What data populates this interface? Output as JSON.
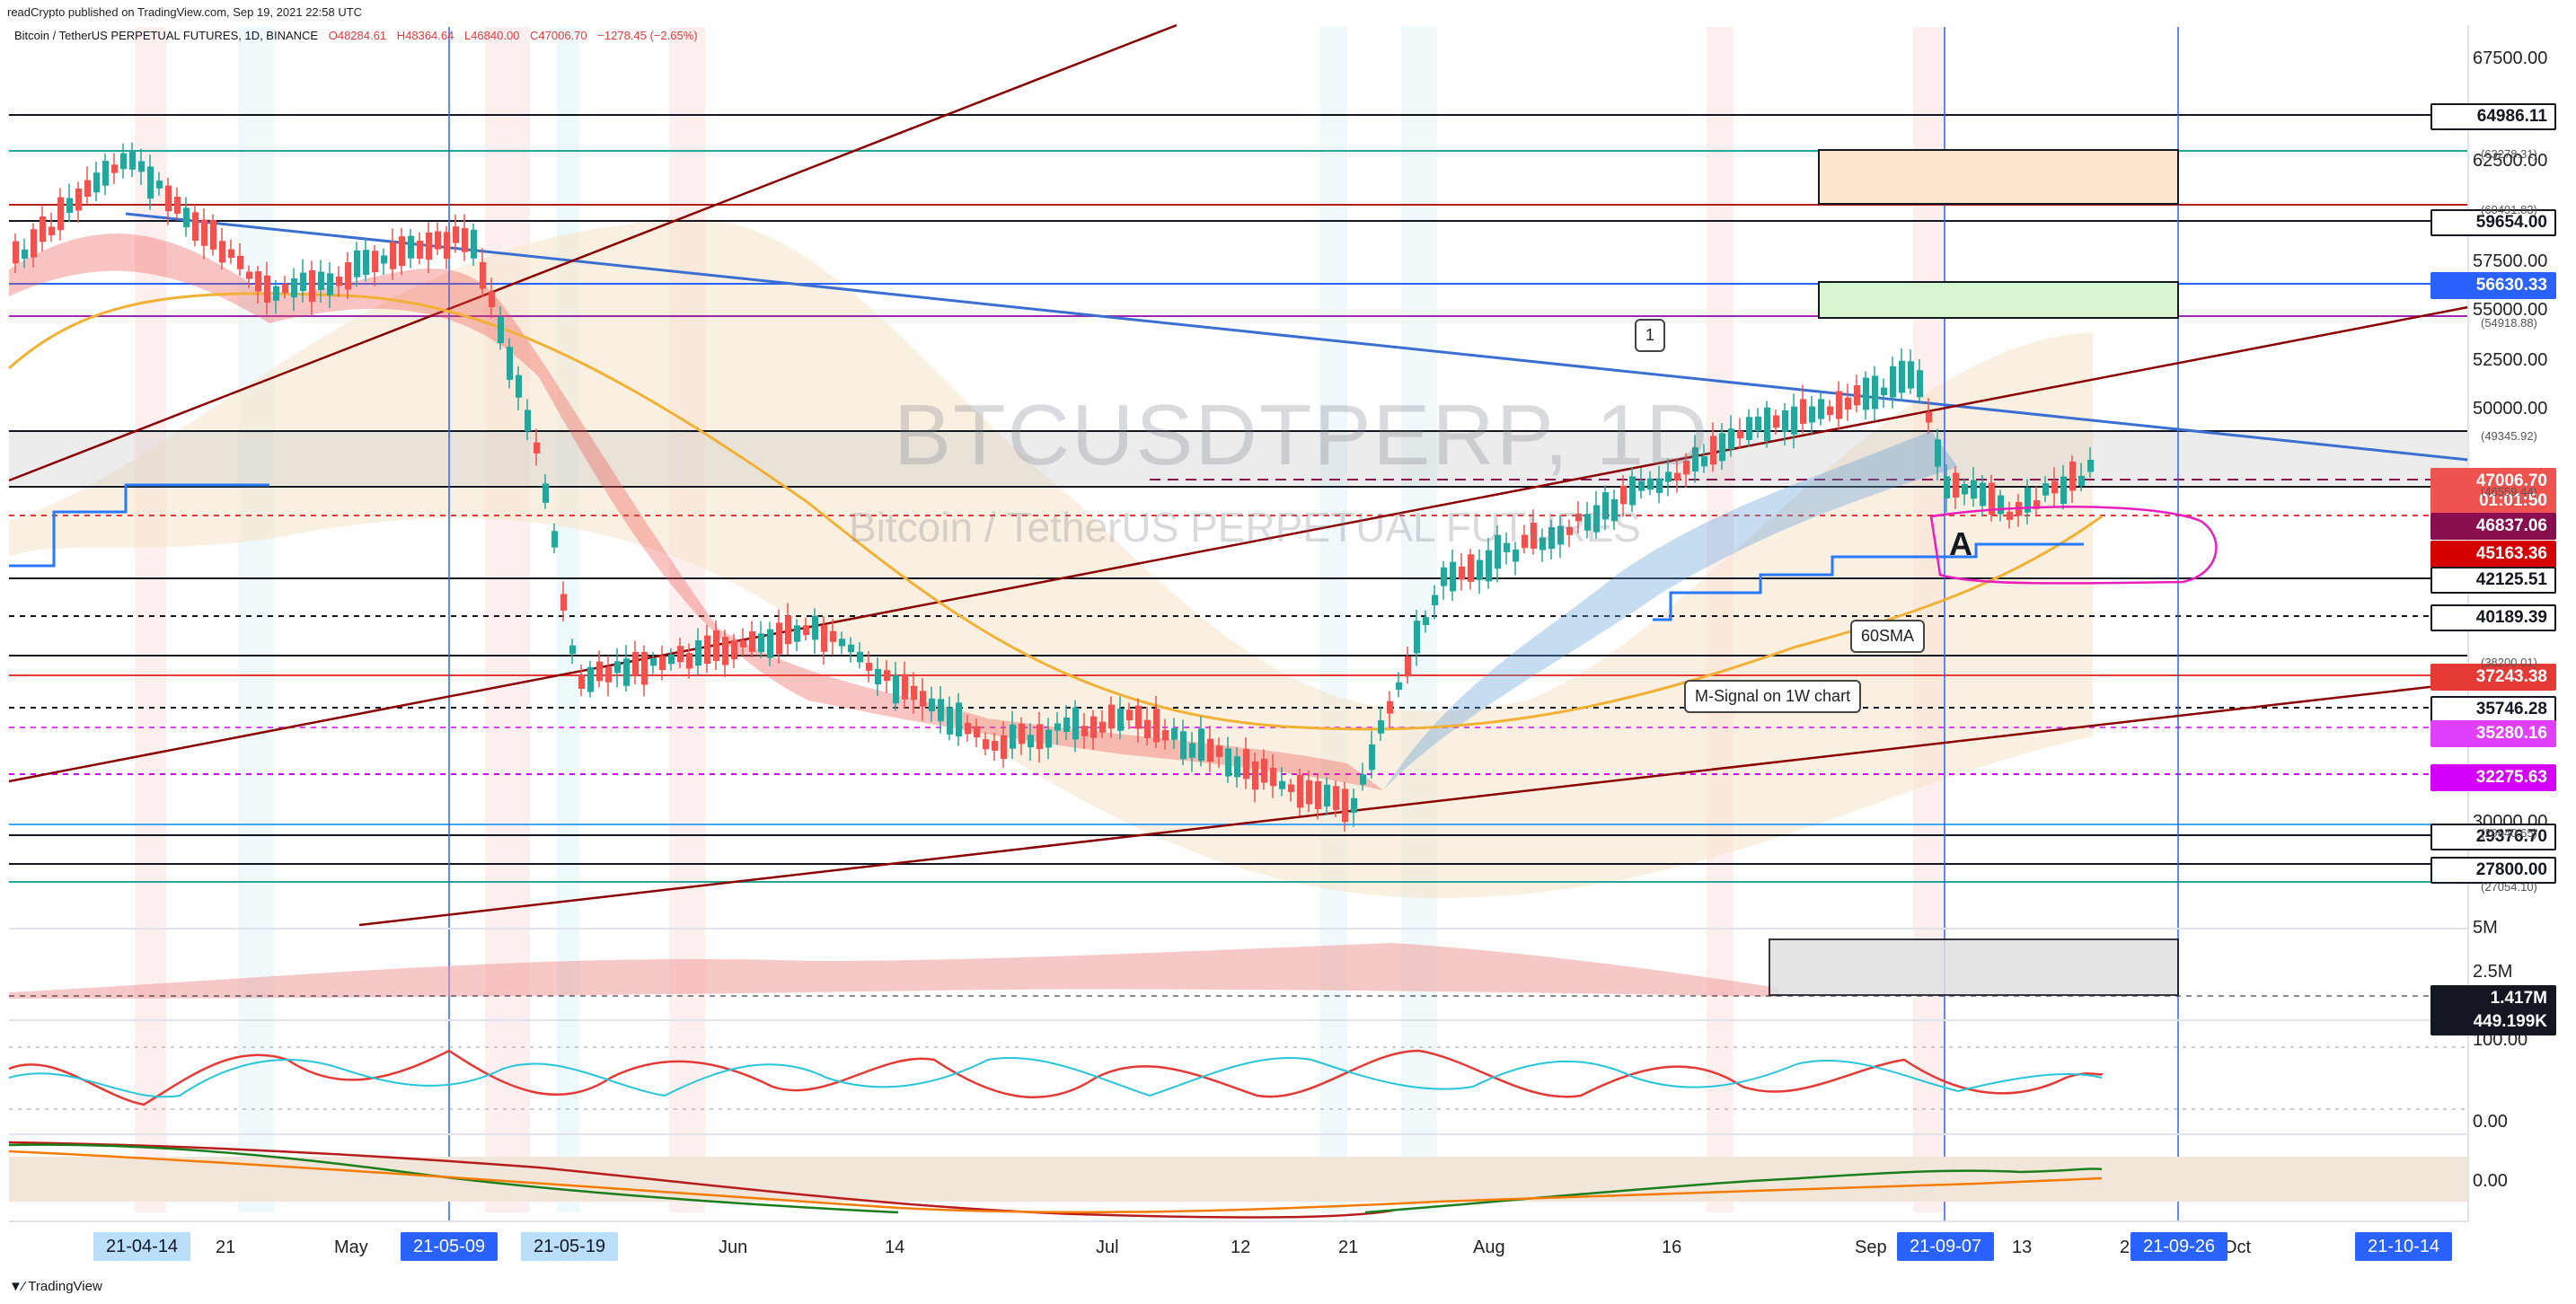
{
  "header": {
    "published": "readCrypto published on TradingView.com, Sep 19, 2021 22:58 UTC",
    "symbol": "Bitcoin / TetherUS PERPETUAL FUTURES, 1D, BINANCE",
    "open": "O48284.61",
    "high": "H48364.64",
    "low": "L46840.00",
    "close": "C47006.70",
    "change": "−1278.45 (−2.65%)"
  },
  "watermark": {
    "ticker": "BTCUSDTPERP, 1D",
    "name": "Bitcoin / TetherUS PERPETUAL FUTURES"
  },
  "price_axis": {
    "ticks": [
      "67500.00",
      "62500.00",
      "57500.00",
      "55000.00",
      "52500.00",
      "50000.00",
      "30000.00",
      "5M",
      "2.5M",
      "100.00",
      "0.00",
      "0.00"
    ],
    "badges": [
      {
        "text": "64986.11",
        "bg": "#ffffff",
        "fg": "#131722",
        "border": "#131722"
      },
      {
        "text": "59654.00",
        "bg": "#ffffff",
        "fg": "#131722",
        "border": "#131722"
      },
      {
        "text": "56630.33",
        "bg": "#2962ff",
        "fg": "#ffffff",
        "border": "#2962ff"
      },
      {
        "text": "47006.70",
        "bg": "#ef5350",
        "fg": "#ffffff",
        "border": "#ef5350"
      },
      {
        "text": "01:01:50",
        "bg": "#ef5350",
        "fg": "#ffffff",
        "border": "#ef5350"
      },
      {
        "text": "46837.06",
        "bg": "#880e4f",
        "fg": "#ffffff",
        "border": "#880e4f"
      },
      {
        "text": "45163.36",
        "bg": "#d50000",
        "fg": "#ffffff",
        "border": "#d50000"
      },
      {
        "text": "42125.51",
        "bg": "#ffffff",
        "fg": "#131722",
        "border": "#131722"
      },
      {
        "text": "40189.39",
        "bg": "#ffffff",
        "fg": "#131722",
        "border": "#131722"
      },
      {
        "text": "37243.38",
        "bg": "#e53935",
        "fg": "#ffffff",
        "border": "#e53935"
      },
      {
        "text": "35746.28",
        "bg": "#ffffff",
        "fg": "#131722",
        "border": "#131722"
      },
      {
        "text": "35280.16",
        "bg": "#e040fb",
        "fg": "#ffffff",
        "border": "#e040fb"
      },
      {
        "text": "32275.63",
        "bg": "#d500f9",
        "fg": "#ffffff",
        "border": "#d500f9"
      },
      {
        "text": "29376.70",
        "bg": "#ffffff",
        "fg": "#131722",
        "border": "#131722"
      },
      {
        "text": "27800.00",
        "bg": "#ffffff",
        "fg": "#131722",
        "border": "#131722"
      },
      {
        "text": "1.417M",
        "bg": "#131722",
        "fg": "#ffffff",
        "border": "#131722"
      },
      {
        "text": "449.199K",
        "bg": "#131722",
        "fg": "#ffffff",
        "border": "#131722"
      }
    ],
    "small_labels": [
      "(63278.31)",
      "(60491.83)",
      "(54918.88)",
      "(49345.92)",
      "(46559.44)",
      "(38200.01)",
      "(29640.65)",
      "(27054.10)"
    ]
  },
  "time_axis": {
    "labels": [
      "21",
      "May",
      "Jun",
      "14",
      "Jul",
      "12",
      "21",
      "Aug",
      "16",
      "Sep",
      "13",
      "2",
      "Oct"
    ],
    "pills": [
      {
        "text": "21-04-14",
        "bg": "#bbdefb",
        "fg": "#131722"
      },
      {
        "text": "21-05-09",
        "bg": "#2962ff",
        "fg": "#ffffff"
      },
      {
        "text": "21-05-19",
        "bg": "#bbdefb",
        "fg": "#131722"
      },
      {
        "text": "21-09-07",
        "bg": "#2962ff",
        "fg": "#ffffff"
      },
      {
        "text": "21-09-26",
        "bg": "#2962ff",
        "fg": "#ffffff"
      },
      {
        "text": "21-10-14",
        "bg": "#2962ff",
        "fg": "#ffffff"
      }
    ]
  },
  "annotations": {
    "callout_1": "1",
    "point_a": "A",
    "sma_label": "60SMA",
    "msignal_label": "M-Signal on 1W chart"
  },
  "footer": {
    "logo": "TradingView"
  },
  "colors": {
    "up": "#26a69a",
    "down": "#ef5350",
    "trendline_blue": "#3a6fd1",
    "trendline_dark_red": "#8b0000"
  }
}
